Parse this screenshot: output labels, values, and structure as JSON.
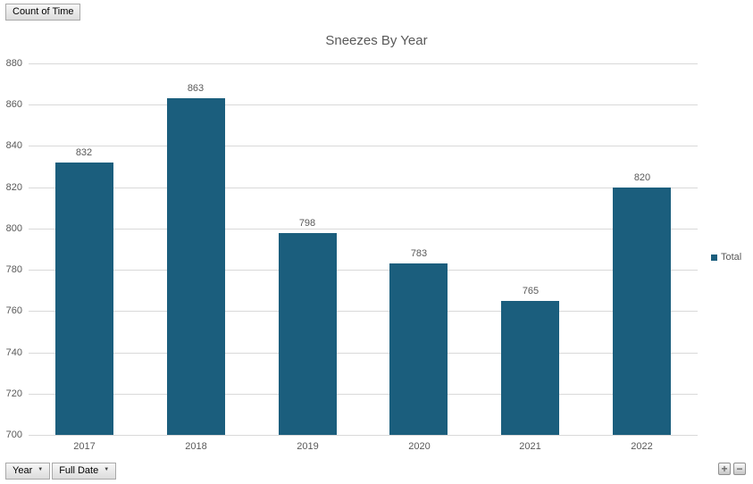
{
  "pivot_controls": {
    "value_field_button": "Count of Time",
    "axis_field_buttons": [
      {
        "label": "Year",
        "dropdown_icon": "▼"
      },
      {
        "label": "Full Date",
        "dropdown_icon": "▼"
      }
    ],
    "expand_button": "+",
    "collapse_button": "−"
  },
  "chart_data": {
    "type": "bar",
    "title": "Sneezes By Year",
    "categories": [
      "2017",
      "2018",
      "2019",
      "2020",
      "2021",
      "2022"
    ],
    "series": [
      {
        "name": "Total",
        "values": [
          832,
          863,
          798,
          783,
          765,
          820
        ]
      }
    ],
    "data_labels_shown": true,
    "xlabel": "",
    "ylabel": "",
    "ylim": [
      700,
      880
    ],
    "y_ticks": [
      700,
      720,
      740,
      760,
      780,
      800,
      820,
      840,
      860,
      880
    ],
    "grid": true,
    "legend_position": "right",
    "bar_color": "#1b5e7d"
  },
  "colors": {
    "bar": "#1b5e7d",
    "gridline": "#d9d9d9",
    "text": "#595959"
  }
}
